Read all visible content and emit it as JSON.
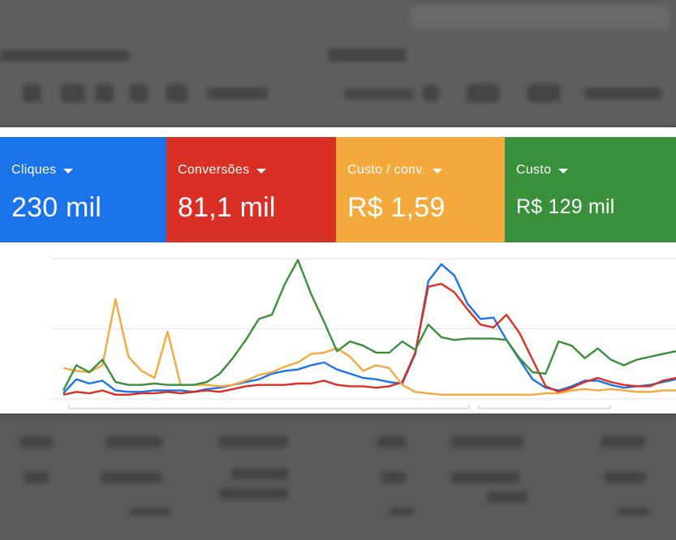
{
  "metrics": [
    {
      "label": "Cliques",
      "value": "230 mil",
      "color": "#1a73e8"
    },
    {
      "label": "Conversões",
      "value": "81,1 mil",
      "color": "#d93025"
    },
    {
      "label": "Custo / conv.",
      "value": "R$ 1,59",
      "color": "#f4a93d"
    },
    {
      "label": "Custo",
      "value": "R$ 129 mil",
      "color": "#3a8f3a"
    }
  ],
  "chart_data": {
    "type": "line",
    "x": [
      1,
      2,
      3,
      4,
      5,
      6,
      7,
      8,
      9,
      10,
      11,
      12,
      13,
      14,
      15,
      16,
      17,
      18,
      19,
      20,
      21,
      22,
      23,
      24,
      25,
      26,
      27,
      28,
      29,
      30,
      31,
      32,
      33,
      34,
      35,
      36,
      37,
      38,
      39,
      40,
      41,
      42,
      43,
      44,
      45,
      46,
      47,
      48
    ],
    "series": [
      {
        "color": "#1a73e8",
        "values": [
          4,
          14,
          11,
          13,
          6,
          5,
          5,
          6,
          6,
          6,
          5,
          7,
          8,
          10,
          12,
          14,
          18,
          20,
          21,
          24,
          26,
          21,
          18,
          15,
          14,
          12,
          11,
          32,
          84,
          96,
          88,
          68,
          57,
          58,
          42,
          28,
          14,
          8,
          6,
          9,
          13,
          13,
          10,
          8,
          9,
          10,
          12,
          14
        ]
      },
      {
        "color": "#d93025",
        "values": [
          3,
          5,
          4,
          6,
          3,
          3,
          4,
          4,
          5,
          4,
          5,
          6,
          5,
          7,
          9,
          10,
          10,
          10,
          11,
          11,
          13,
          10,
          9,
          9,
          8,
          9,
          12,
          33,
          80,
          82,
          76,
          64,
          53,
          51,
          60,
          47,
          28,
          9,
          5,
          8,
          12,
          15,
          12,
          10,
          9,
          9,
          13,
          15
        ]
      },
      {
        "color": "#f4a93d",
        "values": [
          22,
          20,
          19,
          24,
          71,
          30,
          20,
          15,
          48,
          10,
          10,
          10,
          9,
          10,
          13,
          17,
          19,
          23,
          26,
          32,
          33,
          36,
          30,
          20,
          24,
          22,
          10,
          5,
          4,
          3,
          3,
          3,
          3,
          3,
          3,
          3,
          3,
          4,
          4,
          6,
          7,
          6,
          7,
          6,
          5,
          5,
          6,
          6
        ]
      },
      {
        "color": "#3a8f3a",
        "values": [
          6,
          24,
          19,
          28,
          12,
          10,
          10,
          11,
          10,
          10,
          10,
          12,
          18,
          29,
          42,
          57,
          60,
          82,
          99,
          75,
          55,
          34,
          41,
          38,
          33,
          33,
          41,
          35,
          53,
          44,
          42,
          43,
          43,
          43,
          42,
          29,
          19,
          18,
          41,
          38,
          29,
          36,
          28,
          24,
          28,
          30,
          32,
          34
        ]
      }
    ],
    "ylim": [
      0,
      100
    ],
    "grid": true
  }
}
